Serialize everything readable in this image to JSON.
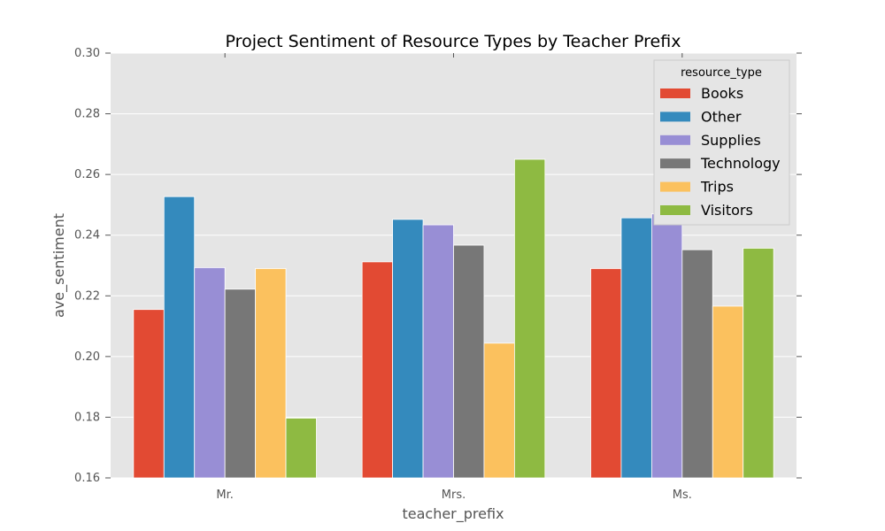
{
  "chart_data": {
    "type": "bar",
    "title": "Project Sentiment of Resource Types by Teacher Prefix",
    "xlabel": "teacher_prefix",
    "ylabel": "ave_sentiment",
    "ylim": [
      0.16,
      0.3
    ],
    "yticks": [
      "0.16",
      "0.18",
      "0.20",
      "0.22",
      "0.24",
      "0.26",
      "0.28",
      "0.30"
    ],
    "categories": [
      "Mr.",
      "Mrs.",
      "Ms."
    ],
    "grid": true,
    "legend": {
      "title": "resource_type",
      "placement": "top-right"
    },
    "series": [
      {
        "name": "Books",
        "color": "#E24A33",
        "values": [
          0.2155,
          0.2312,
          0.229
        ]
      },
      {
        "name": "Other",
        "color": "#348ABD",
        "values": [
          0.2527,
          0.2452,
          0.2457
        ]
      },
      {
        "name": "Supplies",
        "color": "#988ED5",
        "values": [
          0.2293,
          0.2434,
          0.247
        ]
      },
      {
        "name": "Technology",
        "color": "#777777",
        "values": [
          0.2222,
          0.2367,
          0.2352
        ]
      },
      {
        "name": "Trips",
        "color": "#FBC15E",
        "values": [
          0.229,
          0.2044,
          0.2166
        ]
      },
      {
        "name": "Visitors",
        "color": "#8EBA42",
        "values": [
          0.1797,
          0.265,
          0.2357
        ]
      }
    ]
  }
}
